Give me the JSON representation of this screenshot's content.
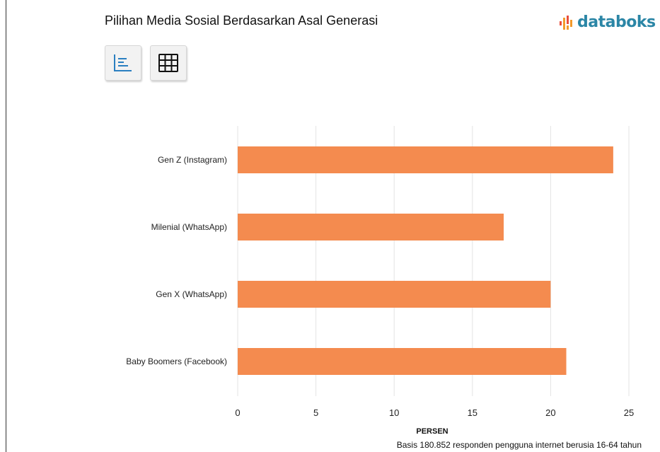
{
  "header": {
    "title": "Pilihan Media Sosial Berdasarkan Asal Generasi",
    "brand": "databoks"
  },
  "toolbar": {
    "chart_view_icon": "bar-chart-icon",
    "table_view_icon": "table-grid-icon"
  },
  "colors": {
    "bar": "#f48b4f",
    "brand": "#2b86a6",
    "grid": "#e3e3e3"
  },
  "chart_data": {
    "type": "bar",
    "orientation": "horizontal",
    "title": "Pilihan Media Sosial Berdasarkan Asal Generasi",
    "categories": [
      "Gen Z (Instagram)",
      "Milenial (WhatsApp)",
      "Gen X (WhatsApp)",
      "Baby Boomers (Facebook)"
    ],
    "values": [
      24,
      17,
      20,
      21
    ],
    "xlabel": "PERSEN",
    "ylabel": "",
    "xlim": [
      0,
      25
    ],
    "xticks": [
      0,
      5,
      10,
      15,
      20,
      25
    ],
    "grid": true,
    "note": "Basis 180.852 responden pengguna internet berusia 16-64 tahun"
  }
}
